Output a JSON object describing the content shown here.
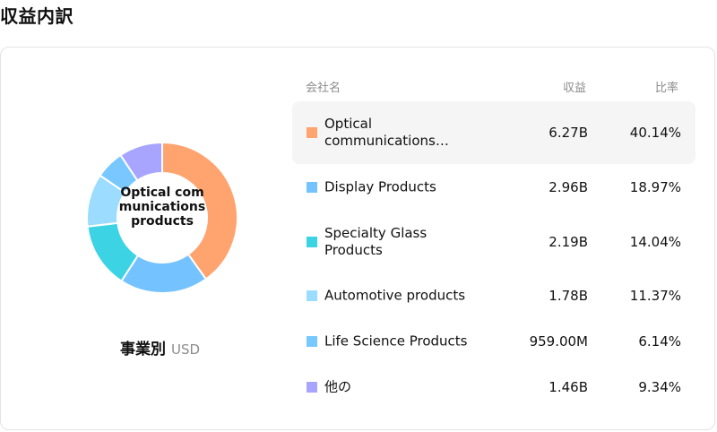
{
  "title": "収益内訳",
  "donut": {
    "center_label": "Optical communications products"
  },
  "footer": {
    "label": "事業別",
    "currency": "USD"
  },
  "table": {
    "headers": {
      "name": "会社名",
      "revenue": "収益",
      "ratio": "比率"
    },
    "rows": [
      {
        "name": "Optical communications products",
        "revenue": "6.27B",
        "ratio": "40.14%",
        "color": "#FFA36F"
      },
      {
        "name": "Display Products",
        "revenue": "2.96B",
        "ratio": "18.97%",
        "color": "#74C2FF"
      },
      {
        "name": "Specialty Glass Products",
        "revenue": "2.19B",
        "ratio": "14.04%",
        "color": "#3CD4E4"
      },
      {
        "name": "Automotive products",
        "revenue": "1.78B",
        "ratio": "11.37%",
        "color": "#9BDCFF"
      },
      {
        "name": "Life Science Products",
        "revenue": "959.00M",
        "ratio": "6.14%",
        "color": "#78C8FF"
      },
      {
        "name": "他の",
        "revenue": "1.46B",
        "ratio": "9.34%",
        "color": "#A7A5FF"
      }
    ]
  },
  "chart_data": {
    "type": "pie",
    "categories": [
      "Optical communications products",
      "Display Products",
      "Specialty Glass Products",
      "Automotive products",
      "Life Science Products",
      "他の"
    ],
    "values": [
      40.14,
      18.97,
      14.04,
      11.37,
      6.14,
      9.34
    ],
    "colors": [
      "#FFA36F",
      "#74C2FF",
      "#3CD4E4",
      "#9BDCFF",
      "#78C8FF",
      "#A7A5FF"
    ]
  }
}
